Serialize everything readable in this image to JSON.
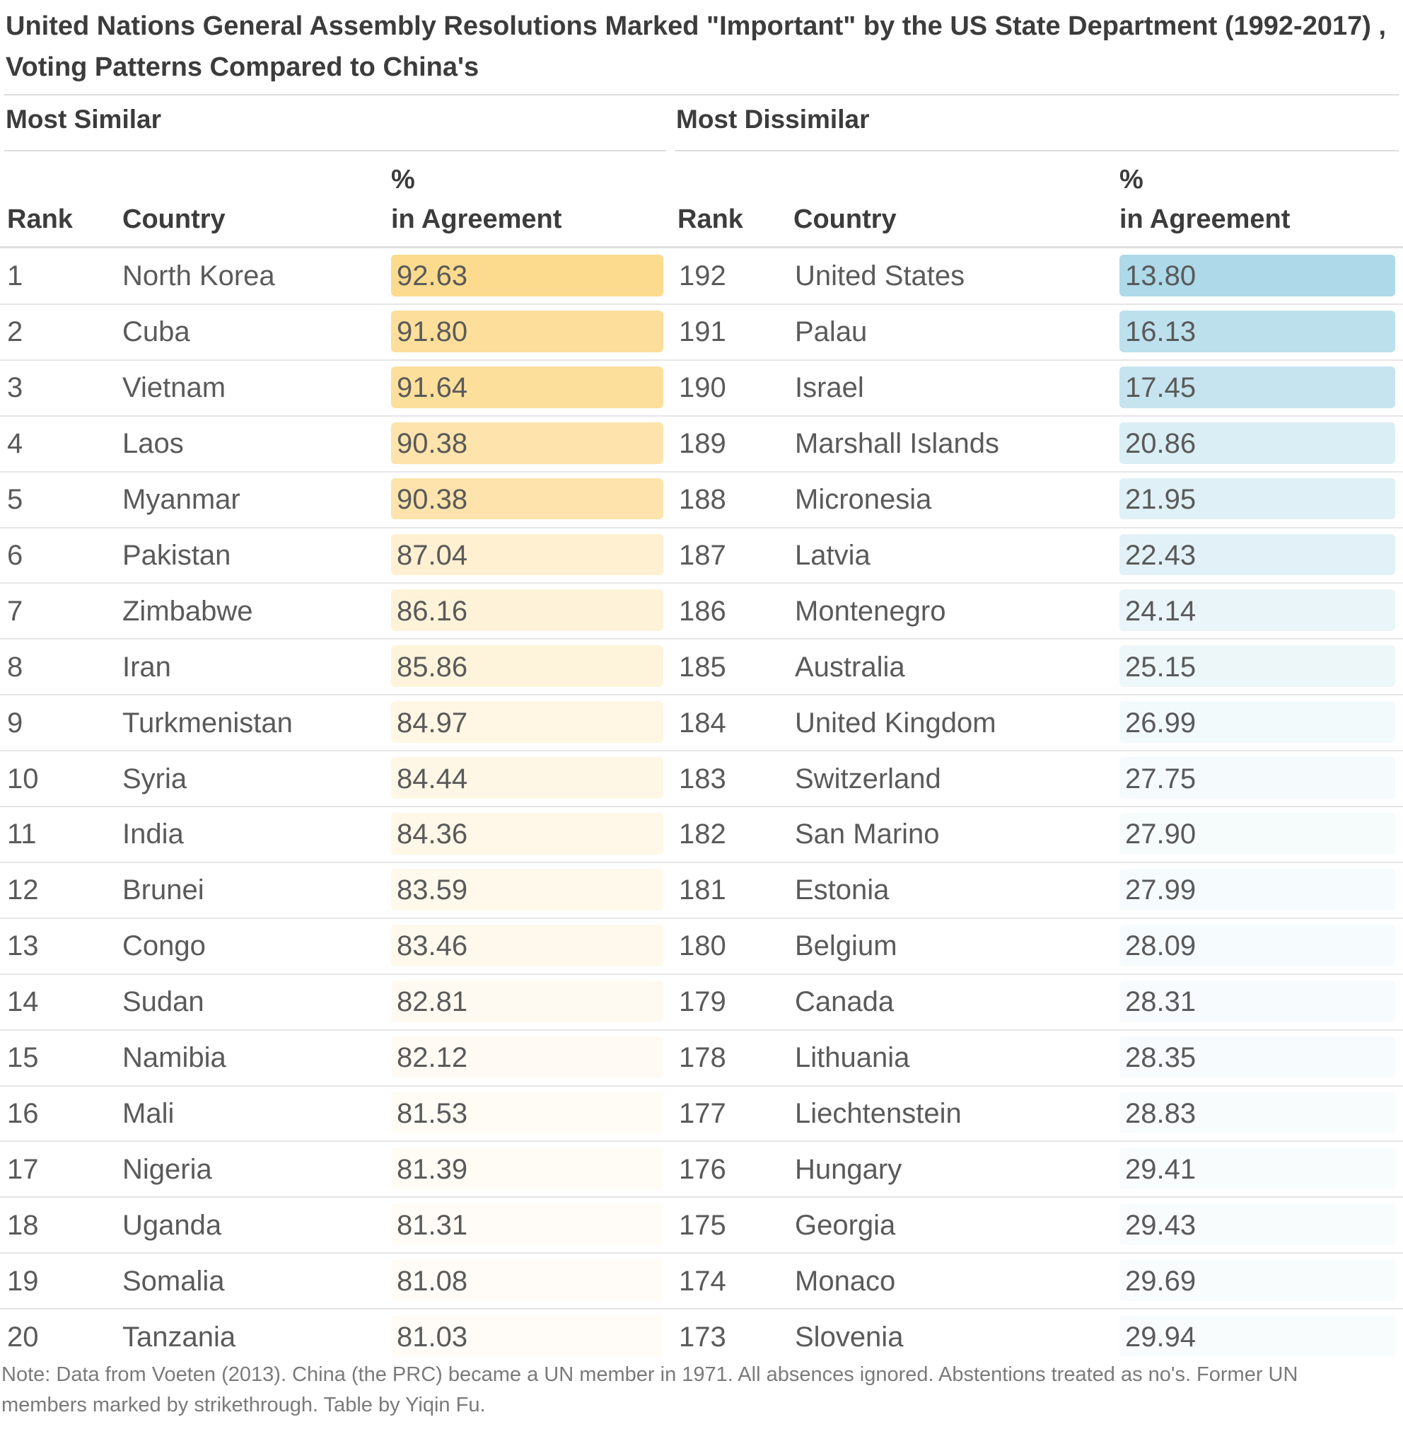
{
  "title": "United Nations General Assembly Resolutions Marked \"Important\" by the US State Department (1992-2017) , Voting Patterns Compared to China's",
  "note": "Note: Data from Voeten (2013). China (the PRC) became a UN member in 1971. All absences ignored. Abstentions treated as no's. Former UN members marked by strikethrough. Table by Yiqin Fu.",
  "colors": {
    "similar_bar": "#fdd989",
    "dissimilar_bar": "#a7d6e7",
    "background": "#ffffff"
  },
  "chart_data": [
    {
      "type": "table",
      "group": "Most Similar",
      "columns": {
        "rank": "Rank",
        "country": "Country",
        "pct_line1": "%",
        "pct_line2": "in Agreement"
      },
      "rows": [
        {
          "rank": "1",
          "country": "North Korea",
          "value": "92.63"
        },
        {
          "rank": "2",
          "country": "Cuba",
          "value": "91.80"
        },
        {
          "rank": "3",
          "country": "Vietnam",
          "value": "91.64"
        },
        {
          "rank": "4",
          "country": "Laos",
          "value": "90.38"
        },
        {
          "rank": "5",
          "country": "Myanmar",
          "value": "90.38"
        },
        {
          "rank": "6",
          "country": "Pakistan",
          "value": "87.04"
        },
        {
          "rank": "7",
          "country": "Zimbabwe",
          "value": "86.16"
        },
        {
          "rank": "8",
          "country": "Iran",
          "value": "85.86"
        },
        {
          "rank": "9",
          "country": "Turkmenistan",
          "value": "84.97"
        },
        {
          "rank": "10",
          "country": "Syria",
          "value": "84.44"
        },
        {
          "rank": "11",
          "country": "India",
          "value": "84.36"
        },
        {
          "rank": "12",
          "country": "Brunei",
          "value": "83.59"
        },
        {
          "rank": "13",
          "country": "Congo",
          "value": "83.46"
        },
        {
          "rank": "14",
          "country": "Sudan",
          "value": "82.81"
        },
        {
          "rank": "15",
          "country": "Namibia",
          "value": "82.12"
        },
        {
          "rank": "16",
          "country": "Mali",
          "value": "81.53"
        },
        {
          "rank": "17",
          "country": "Nigeria",
          "value": "81.39"
        },
        {
          "rank": "18",
          "country": "Uganda",
          "value": "81.31"
        },
        {
          "rank": "19",
          "country": "Somalia",
          "value": "81.08"
        },
        {
          "rank": "20",
          "country": "Tanzania",
          "value": "81.03"
        }
      ]
    },
    {
      "type": "table",
      "group": "Most Dissimilar",
      "columns": {
        "rank": "Rank",
        "country": "Country",
        "pct_line1": "%",
        "pct_line2": "in Agreement"
      },
      "rows": [
        {
          "rank": "192",
          "country": "United States",
          "value": "13.80"
        },
        {
          "rank": "191",
          "country": "Palau",
          "value": "16.13"
        },
        {
          "rank": "190",
          "country": "Israel",
          "value": "17.45"
        },
        {
          "rank": "189",
          "country": "Marshall Islands",
          "value": "20.86"
        },
        {
          "rank": "188",
          "country": "Micronesia",
          "value": "21.95"
        },
        {
          "rank": "187",
          "country": "Latvia",
          "value": "22.43"
        },
        {
          "rank": "186",
          "country": "Montenegro",
          "value": "24.14"
        },
        {
          "rank": "185",
          "country": "Australia",
          "value": "25.15"
        },
        {
          "rank": "184",
          "country": "United Kingdom",
          "value": "26.99"
        },
        {
          "rank": "183",
          "country": "Switzerland",
          "value": "27.75"
        },
        {
          "rank": "182",
          "country": "San Marino",
          "value": "27.90"
        },
        {
          "rank": "181",
          "country": "Estonia",
          "value": "27.99"
        },
        {
          "rank": "180",
          "country": "Belgium",
          "value": "28.09"
        },
        {
          "rank": "179",
          "country": "Canada",
          "value": "28.31"
        },
        {
          "rank": "178",
          "country": "Lithuania",
          "value": "28.35"
        },
        {
          "rank": "177",
          "country": "Liechtenstein",
          "value": "28.83"
        },
        {
          "rank": "176",
          "country": "Hungary",
          "value": "29.41"
        },
        {
          "rank": "175",
          "country": "Georgia",
          "value": "29.43"
        },
        {
          "rank": "174",
          "country": "Monaco",
          "value": "29.69"
        },
        {
          "rank": "173",
          "country": "Slovenia",
          "value": "29.94"
        }
      ]
    }
  ]
}
